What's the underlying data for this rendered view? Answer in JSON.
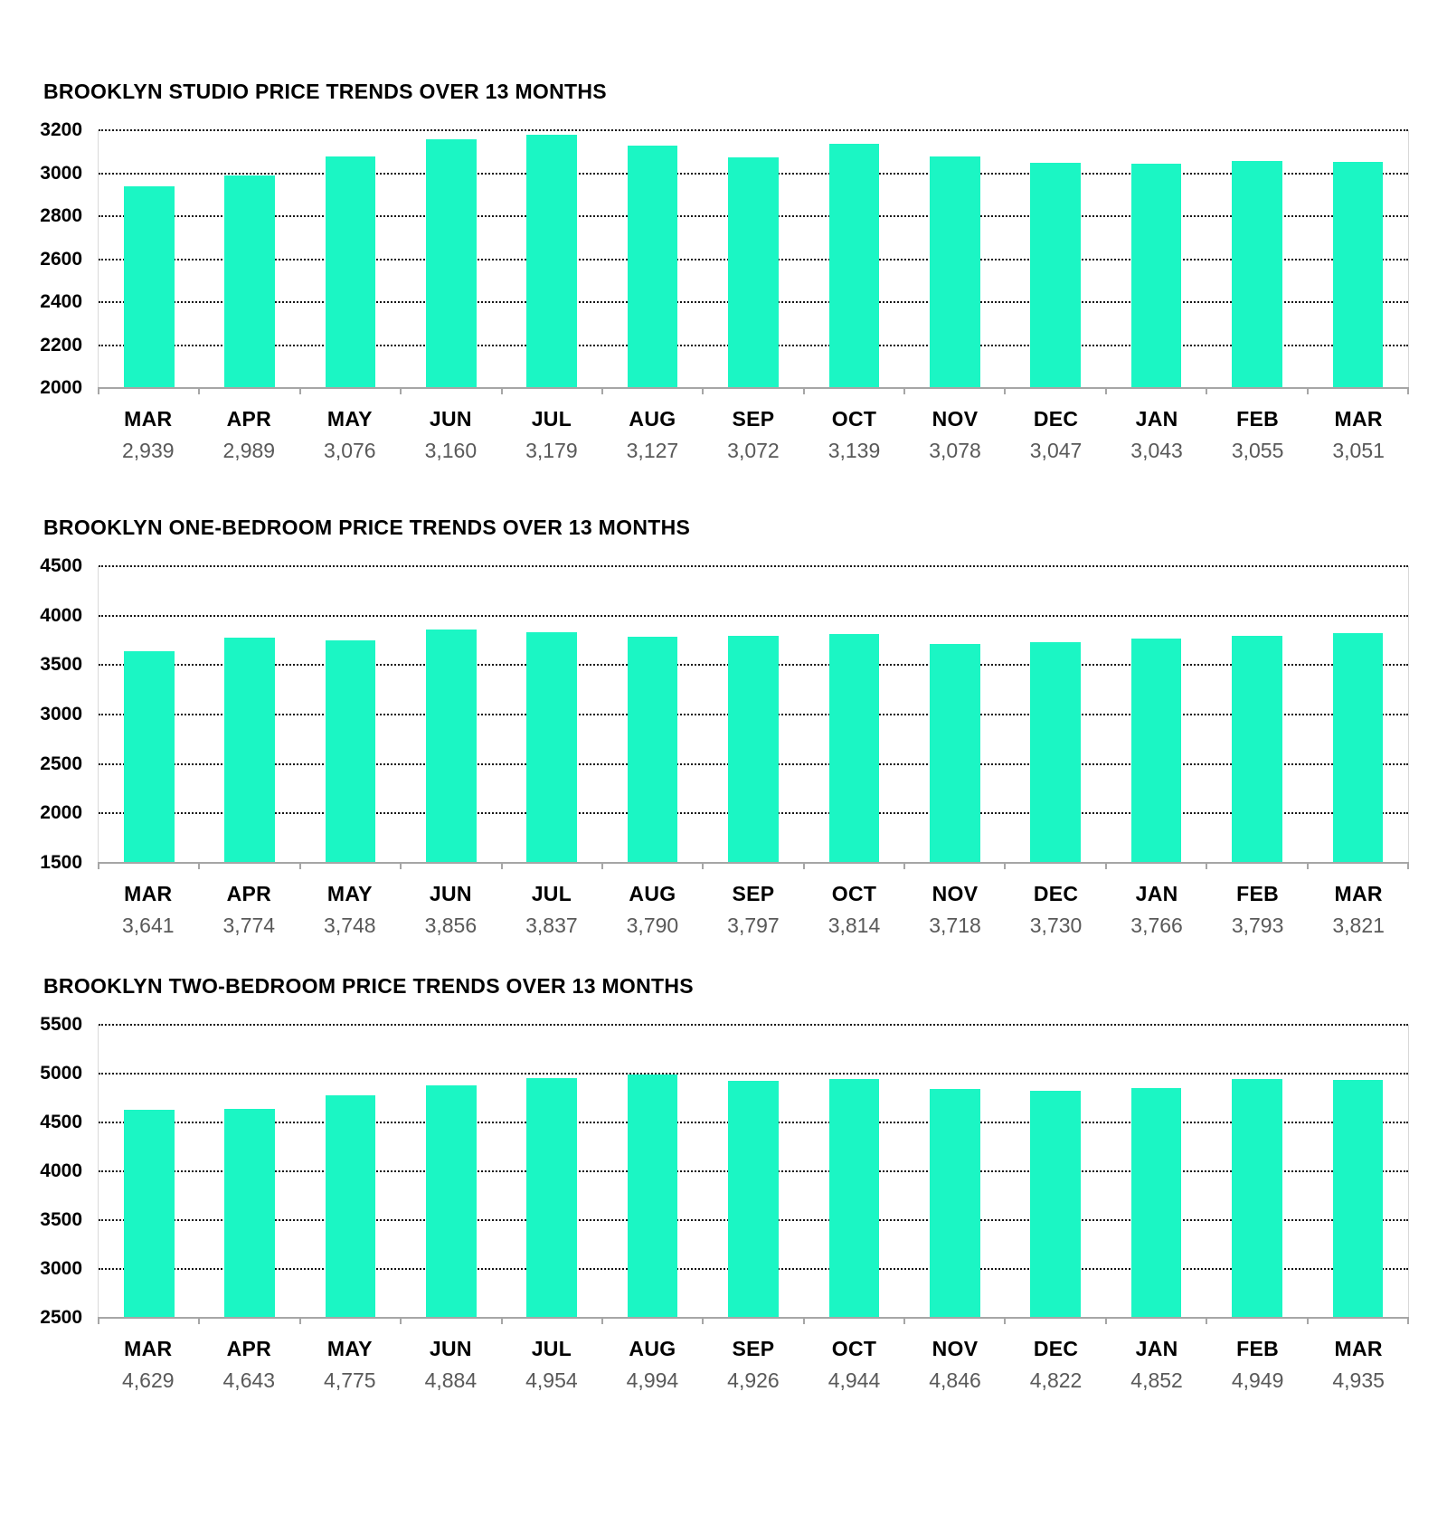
{
  "colors": {
    "bar": "#1BF6C4",
    "grid_dots": "#161616",
    "axis_line": "#a6a6a6",
    "month_label": "#000000",
    "value_label": "#595959",
    "title": "#000000"
  },
  "chart_data": [
    {
      "type": "bar",
      "title": "BROOKLYN STUDIO PRICE TRENDS OVER 13 MONTHS",
      "categories": [
        "MAR",
        "APR",
        "MAY",
        "JUN",
        "JUL",
        "AUG",
        "SEP",
        "OCT",
        "NOV",
        "DEC",
        "JAN",
        "FEB",
        "MAR"
      ],
      "values": [
        2939,
        2989,
        3076,
        3160,
        3179,
        3127,
        3072,
        3139,
        3078,
        3047,
        3043,
        3055,
        3051
      ],
      "value_labels": [
        "2,939",
        "2,989",
        "3,076",
        "3,160",
        "3,179",
        "3,127",
        "3,072",
        "3,139",
        "3,078",
        "3,047",
        "3,043",
        "3,055",
        "3,051"
      ],
      "xlabel": "",
      "ylabel": "",
      "ylim": [
        2000,
        3200
      ],
      "ytick_step": 200,
      "yticks": [
        3200,
        3000,
        2800,
        2600,
        2400,
        2200,
        2000
      ],
      "grid": "dotted-horizontal",
      "legend": "none"
    },
    {
      "type": "bar",
      "title": "BROOKLYN ONE-BEDROOM PRICE TRENDS OVER 13 MONTHS",
      "categories": [
        "MAR",
        "APR",
        "MAY",
        "JUN",
        "JUL",
        "AUG",
        "SEP",
        "OCT",
        "NOV",
        "DEC",
        "JAN",
        "FEB",
        "MAR"
      ],
      "values": [
        3641,
        3774,
        3748,
        3856,
        3837,
        3790,
        3797,
        3814,
        3718,
        3730,
        3766,
        3793,
        3821
      ],
      "value_labels": [
        "3,641",
        "3,774",
        "3,748",
        "3,856",
        "3,837",
        "3,790",
        "3,797",
        "3,814",
        "3,718",
        "3,730",
        "3,766",
        "3,793",
        "3,821"
      ],
      "xlabel": "",
      "ylabel": "",
      "ylim": [
        1500,
        4500
      ],
      "ytick_step": 500,
      "yticks": [
        4500,
        4000,
        3500,
        3000,
        2500,
        2000,
        1500
      ],
      "grid": "dotted-horizontal",
      "legend": "none"
    },
    {
      "type": "bar",
      "title": "BROOKLYN TWO-BEDROOM PRICE TRENDS OVER 13 MONTHS",
      "categories": [
        "MAR",
        "APR",
        "MAY",
        "JUN",
        "JUL",
        "AUG",
        "SEP",
        "OCT",
        "NOV",
        "DEC",
        "JAN",
        "FEB",
        "MAR"
      ],
      "values": [
        4629,
        4643,
        4775,
        4884,
        4954,
        4994,
        4926,
        4944,
        4846,
        4822,
        4852,
        4949,
        4935
      ],
      "value_labels": [
        "4,629",
        "4,643",
        "4,775",
        "4,884",
        "4,954",
        "4,994",
        "4,926",
        "4,944",
        "4,846",
        "4,822",
        "4,852",
        "4,949",
        "4,935"
      ],
      "xlabel": "",
      "ylabel": "",
      "ylim": [
        2500,
        5500
      ],
      "ytick_step": 500,
      "yticks": [
        5500,
        5000,
        4500,
        4000,
        3500,
        3000,
        2500
      ],
      "grid": "dotted-horizontal",
      "legend": "none"
    }
  ]
}
